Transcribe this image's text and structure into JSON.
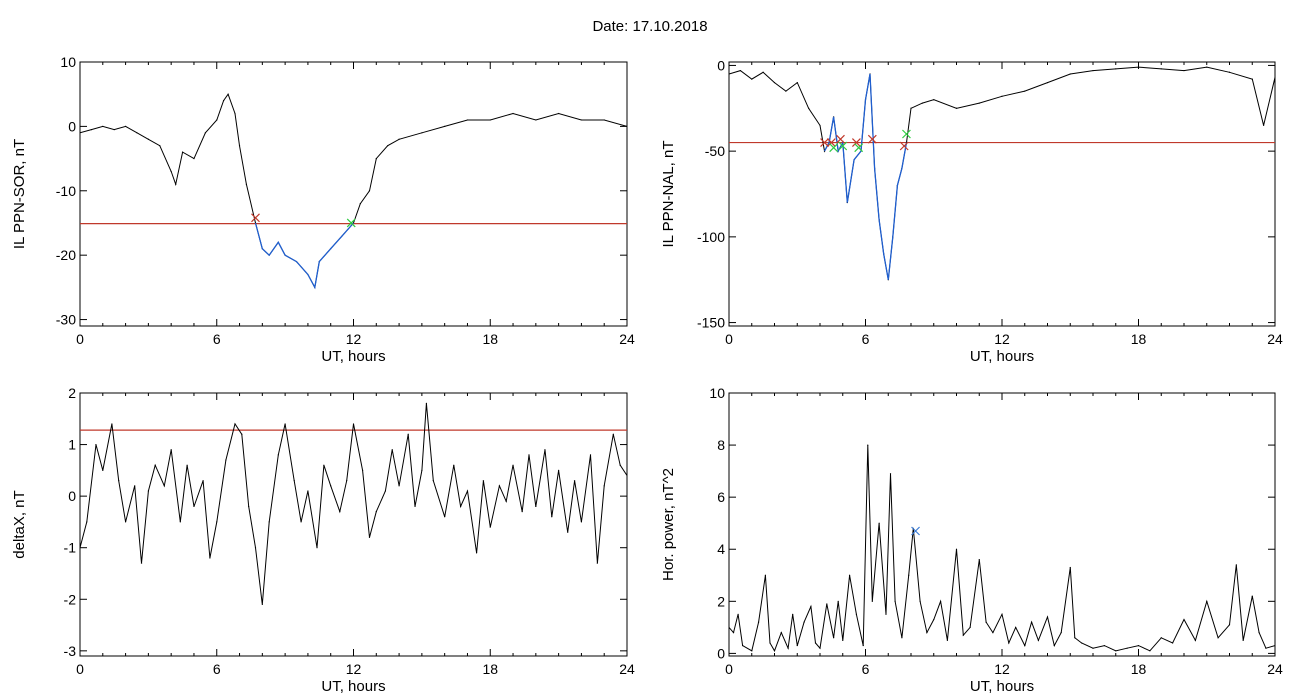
{
  "title": "Date:  17.10.2018",
  "colors": {
    "line": "#000000",
    "threshold": "#c0392b",
    "highlight": "#1f5fd0",
    "start_marker": "#c0392b",
    "end_marker": "#2ecc40",
    "peak_marker": "#3a7bd5"
  },
  "chart_data": [
    {
      "type": "line",
      "xlabel": "UT, hours",
      "ylabel": "IL PPN-SOR, nT",
      "xlim": [
        0,
        24
      ],
      "ylim": [
        -31,
        10
      ],
      "xticks": [
        0,
        6,
        12,
        18,
        24
      ],
      "yticks": [
        -30,
        -20,
        -10,
        0,
        10
      ],
      "threshold": -15.1,
      "series": [
        {
          "x": [
            0,
            0.5,
            1,
            1.5,
            2,
            2.5,
            3,
            3.5,
            4,
            4.2,
            4.5,
            5,
            5.5,
            6,
            6.3,
            6.5,
            6.8,
            7,
            7.3,
            7.7,
            8,
            8.3,
            8.7,
            9,
            9.5,
            10,
            10.3,
            10.5,
            11,
            11.5,
            12,
            12.3,
            12.7,
            13,
            13.5,
            14,
            15,
            16,
            17,
            18,
            19,
            20,
            21,
            22,
            23,
            24
          ],
          "y": [
            -1,
            -0.5,
            0,
            -0.5,
            0,
            -1,
            -2,
            -3,
            -7,
            -9,
            -4,
            -5,
            -1,
            1,
            4,
            5,
            2,
            -3,
            -9,
            -15,
            -19,
            -20,
            -18,
            -20,
            -21,
            -23,
            -25,
            -21,
            -19,
            -17,
            -15,
            -12,
            -10,
            -5,
            -3,
            -2,
            -1,
            0,
            1,
            1,
            2,
            1,
            2,
            1,
            1,
            0
          ]
        }
      ],
      "highlight": {
        "from": 7.7,
        "to": 12
      },
      "markers": [
        {
          "x": 7.7,
          "y": -14.2,
          "kind": "start"
        },
        {
          "x": 11.9,
          "y": -15,
          "kind": "end"
        }
      ]
    },
    {
      "type": "line",
      "xlabel": "UT, hours",
      "ylabel": "IL PPN-NAL, nT",
      "xlim": [
        0,
        24
      ],
      "ylim": [
        -152,
        2
      ],
      "xticks": [
        0,
        6,
        12,
        18,
        24
      ],
      "yticks": [
        -150,
        -100,
        -50,
        0
      ],
      "threshold": -45,
      "series": [
        {
          "x": [
            0,
            0.5,
            1,
            1.5,
            2,
            2.5,
            3,
            3.5,
            4,
            4.2,
            4.4,
            4.6,
            4.8,
            5,
            5.2,
            5.5,
            5.8,
            6,
            6.2,
            6.4,
            6.6,
            6.8,
            7,
            7.2,
            7.4,
            7.6,
            7.8,
            8,
            8.5,
            9,
            10,
            11,
            12,
            13,
            14,
            15,
            16,
            17,
            18,
            19,
            20,
            21,
            22,
            23,
            23.5,
            24
          ],
          "y": [
            -5,
            -3,
            -8,
            -4,
            -10,
            -15,
            -10,
            -25,
            -35,
            -50,
            -45,
            -30,
            -50,
            -45,
            -80,
            -55,
            -50,
            -20,
            -5,
            -60,
            -90,
            -110,
            -125,
            -100,
            -70,
            -60,
            -45,
            -25,
            -22,
            -20,
            -25,
            -22,
            -18,
            -15,
            -10,
            -5,
            -3,
            -2,
            -1,
            -2,
            -3,
            -1,
            -4,
            -8,
            -35,
            -7
          ]
        }
      ],
      "highlight": {
        "from": 4.2,
        "to": 7.8
      },
      "markers": [
        {
          "x": 4.2,
          "y": -45,
          "kind": "start"
        },
        {
          "x": 4.5,
          "y": -45,
          "kind": "start"
        },
        {
          "x": 4.9,
          "y": -43,
          "kind": "start"
        },
        {
          "x": 5.6,
          "y": -45,
          "kind": "start"
        },
        {
          "x": 6.3,
          "y": -43,
          "kind": "start"
        },
        {
          "x": 7.7,
          "y": -47,
          "kind": "start"
        },
        {
          "x": 4.6,
          "y": -48,
          "kind": "end"
        },
        {
          "x": 5.0,
          "y": -47,
          "kind": "end"
        },
        {
          "x": 5.7,
          "y": -48,
          "kind": "end"
        },
        {
          "x": 7.8,
          "y": -40,
          "kind": "end"
        }
      ]
    },
    {
      "type": "line",
      "xlabel": "UT, hours",
      "ylabel": "deltaX, nT",
      "xlim": [
        0,
        24
      ],
      "ylim": [
        -3.1,
        2
      ],
      "xticks": [
        0,
        6,
        12,
        18,
        24
      ],
      "yticks": [
        -3,
        -2,
        -1,
        0,
        1,
        2
      ],
      "threshold": 1.28,
      "series": [
        {
          "x": [
            0,
            0.3,
            0.7,
            1,
            1.4,
            1.7,
            2,
            2.4,
            2.7,
            3,
            3.3,
            3.7,
            4,
            4.4,
            4.7,
            5,
            5.4,
            5.7,
            6,
            6.4,
            6.8,
            7.1,
            7.4,
            7.7,
            8,
            8.3,
            8.7,
            9,
            9.4,
            9.7,
            10,
            10.4,
            10.7,
            11,
            11.4,
            11.7,
            12,
            12.4,
            12.7,
            13,
            13.4,
            13.7,
            14,
            14.4,
            14.7,
            15,
            15.2,
            15.5,
            16,
            16.4,
            16.7,
            17,
            17.4,
            17.7,
            18,
            18.4,
            18.7,
            19,
            19.4,
            19.7,
            20,
            20.4,
            20.7,
            21,
            21.4,
            21.7,
            22,
            22.4,
            22.7,
            23,
            23.4,
            23.7,
            24
          ],
          "y": [
            -1,
            -0.5,
            1,
            0.5,
            1.4,
            0.3,
            -0.5,
            0.2,
            -1.3,
            0.1,
            0.6,
            0.2,
            0.9,
            -0.5,
            0.6,
            -0.2,
            0.3,
            -1.2,
            -0.5,
            0.7,
            1.4,
            1.2,
            -0.2,
            -1,
            -2.1,
            -0.5,
            0.8,
            1.4,
            0.3,
            -0.5,
            0.1,
            -1,
            0.6,
            0.2,
            -0.3,
            0.3,
            1.4,
            0.5,
            -0.8,
            -0.3,
            0.1,
            0.9,
            0.2,
            1.2,
            -0.2,
            0.5,
            1.8,
            0.3,
            -0.4,
            0.6,
            -0.2,
            0.1,
            -1.1,
            0.3,
            -0.6,
            0.2,
            -0.1,
            0.6,
            -0.3,
            0.8,
            -0.2,
            0.9,
            -0.4,
            0.5,
            -0.7,
            0.3,
            -0.5,
            0.8,
            -1.3,
            0.2,
            1.2,
            0.6,
            0.4
          ]
        }
      ]
    },
    {
      "type": "line",
      "xlabel": "UT, hours",
      "ylabel": "Hor. power, nT^2",
      "xlim": [
        0,
        24
      ],
      "ylim": [
        -0.1,
        10
      ],
      "xticks": [
        0,
        6,
        12,
        18,
        24
      ],
      "yticks": [
        0,
        2,
        4,
        6,
        8,
        10
      ],
      "series": [
        {
          "x": [
            0,
            0.2,
            0.4,
            0.6,
            1,
            1.3,
            1.6,
            1.8,
            2,
            2.3,
            2.6,
            2.8,
            3,
            3.3,
            3.6,
            3.8,
            4,
            4.3,
            4.6,
            4.8,
            5,
            5.3,
            5.6,
            5.9,
            6.1,
            6.3,
            6.6,
            6.9,
            7.1,
            7.3,
            7.6,
            7.9,
            8.1,
            8.4,
            8.7,
            9,
            9.3,
            9.6,
            10,
            10.3,
            10.6,
            11,
            11.3,
            11.6,
            12,
            12.3,
            12.6,
            13,
            13.3,
            13.6,
            14,
            14.3,
            14.6,
            15,
            15.2,
            15.5,
            16,
            16.5,
            17,
            17.5,
            18,
            18.5,
            19,
            19.5,
            20,
            20.5,
            21,
            21.5,
            22,
            22.3,
            22.6,
            23,
            23.3,
            23.6,
            24
          ],
          "y": [
            1,
            0.8,
            1.5,
            0.3,
            0.1,
            1.2,
            3,
            0.4,
            0.1,
            0.8,
            0.2,
            1.5,
            0.3,
            1.2,
            1.8,
            0.4,
            0.2,
            1.9,
            0.6,
            2,
            0.5,
            3,
            1.5,
            0.3,
            8,
            2,
            5,
            1.5,
            6.9,
            2,
            0.6,
            3,
            4.8,
            2,
            0.8,
            1.3,
            2,
            0.5,
            4,
            0.7,
            1,
            3.6,
            1.2,
            0.8,
            1.5,
            0.4,
            1,
            0.3,
            1.2,
            0.5,
            1.4,
            0.3,
            0.8,
            3.3,
            0.6,
            0.4,
            0.2,
            0.3,
            0.1,
            0.2,
            0.3,
            0.1,
            0.6,
            0.4,
            1.3,
            0.5,
            2,
            0.6,
            1.1,
            3.4,
            0.5,
            2.2,
            0.8,
            0.2,
            0.3
          ]
        }
      ],
      "markers": [
        {
          "x": 8.2,
          "y": 4.7,
          "kind": "peak"
        }
      ]
    }
  ]
}
